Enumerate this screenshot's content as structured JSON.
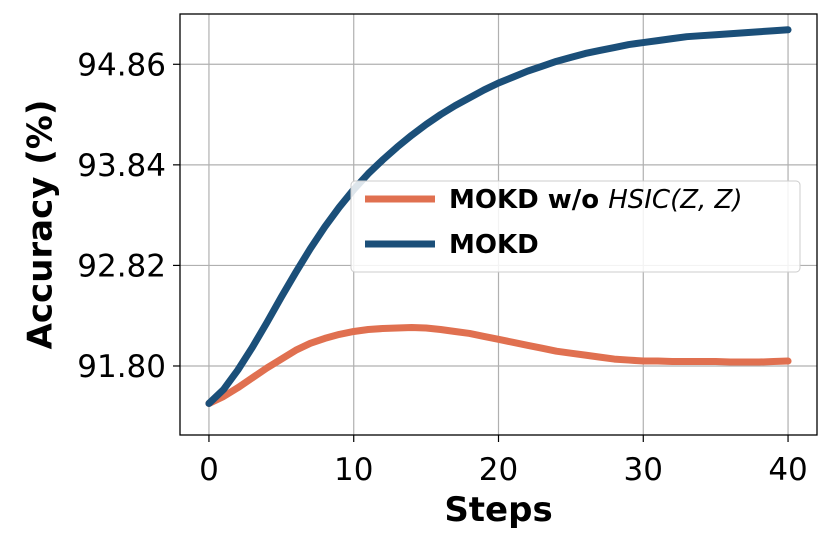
{
  "chart_data": {
    "type": "line",
    "xlabel": "Steps",
    "ylabel": "Accuracy (%)",
    "xlim": [
      -2,
      42
    ],
    "ylim": [
      91.1,
      95.37
    ],
    "xticks": [
      0,
      10,
      20,
      30,
      40
    ],
    "xtick_labels": [
      "0",
      "10",
      "20",
      "30",
      "40"
    ],
    "yticks": [
      91.8,
      92.82,
      93.84,
      94.86
    ],
    "ytick_labels": [
      "91.80",
      "92.82",
      "93.84",
      "94.86"
    ],
    "grid": true,
    "legend_position": "center-right",
    "x": [
      0,
      1,
      2,
      3,
      4,
      5,
      6,
      7,
      8,
      9,
      10,
      11,
      12,
      13,
      14,
      15,
      16,
      17,
      18,
      19,
      20,
      21,
      22,
      23,
      24,
      25,
      26,
      27,
      28,
      29,
      30,
      31,
      32,
      33,
      34,
      35,
      36,
      37,
      38,
      39,
      40
    ],
    "series": [
      {
        "name": "MOKD w/o HSIC(Z,Z)",
        "legend_bold": "MOKD w/o ",
        "legend_italic": "HSIC(Z, Z)",
        "color": "#e07050",
        "values": [
          91.42,
          91.49,
          91.58,
          91.68,
          91.78,
          91.87,
          91.96,
          92.03,
          92.08,
          92.12,
          92.15,
          92.17,
          92.18,
          92.185,
          92.19,
          92.185,
          92.17,
          92.15,
          92.13,
          92.1,
          92.07,
          92.04,
          92.01,
          91.98,
          91.95,
          91.93,
          91.91,
          91.89,
          91.87,
          91.86,
          91.85,
          91.85,
          91.845,
          91.845,
          91.845,
          91.845,
          91.84,
          91.84,
          91.84,
          91.845,
          91.85
        ]
      },
      {
        "name": "MOKD",
        "legend_bold": "MOKD",
        "legend_italic": "",
        "color": "#1b4f79",
        "values": [
          91.42,
          91.56,
          91.76,
          91.99,
          92.24,
          92.5,
          92.75,
          92.99,
          93.21,
          93.41,
          93.59,
          93.75,
          93.89,
          94.02,
          94.14,
          94.25,
          94.35,
          94.44,
          94.52,
          94.6,
          94.67,
          94.73,
          94.79,
          94.84,
          94.89,
          94.93,
          94.97,
          95.0,
          95.03,
          95.06,
          95.08,
          95.1,
          95.12,
          95.14,
          95.15,
          95.16,
          95.17,
          95.18,
          95.19,
          95.2,
          95.21
        ]
      }
    ]
  }
}
